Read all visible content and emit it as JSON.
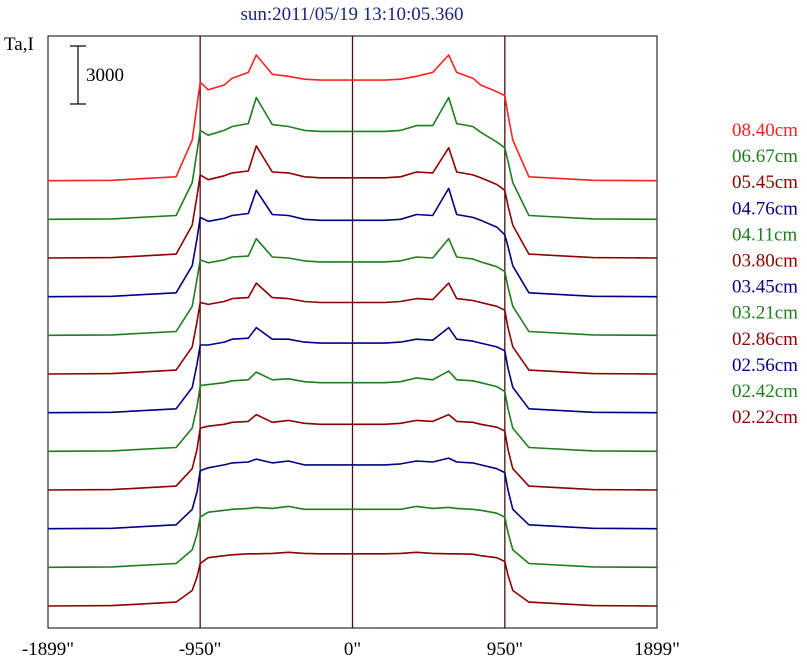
{
  "chart_data": {
    "type": "line",
    "title": "sun:2011/05/19 13:10:05.360",
    "ylabel": "Ta,I",
    "scale_bar_label": "3000",
    "scale_bar_value": 3000,
    "xlim": [
      -1899,
      1899
    ],
    "x_ticks": [
      {
        "value": -1899,
        "label": "-1899\""
      },
      {
        "value": -950,
        "label": "-950\""
      },
      {
        "value": 0,
        "label": "0\""
      },
      {
        "value": 950,
        "label": "950\""
      },
      {
        "value": 1899,
        "label": "1899\""
      }
    ],
    "vertical_markers": [
      -950,
      0,
      950
    ],
    "stack_offset": 2000,
    "x_points": [
      -1899,
      -1500,
      -1100,
      -1000,
      -970,
      -950,
      -900,
      -800,
      -750,
      -650,
      -600,
      -500,
      -400,
      -300,
      -200,
      0,
      200,
      300,
      400,
      500,
      600,
      650,
      750,
      800,
      900,
      950,
      970,
      1000,
      1100,
      1500,
      1899
    ],
    "series": [
      {
        "name": "02.22cm",
        "color": "#8b0000",
        "values": [
          0,
          20,
          200,
          800,
          1500,
          2200,
          2500,
          2600,
          2650,
          2700,
          2700,
          2720,
          2780,
          2720,
          2700,
          2700,
          2700,
          2720,
          2780,
          2720,
          2700,
          2700,
          2680,
          2600,
          2500,
          2300,
          1600,
          800,
          200,
          20,
          0
        ]
      },
      {
        "name": "02.42cm",
        "color": "#1e7d1e",
        "values": [
          0,
          20,
          200,
          900,
          1700,
          2600,
          2850,
          2950,
          3000,
          3050,
          3100,
          3050,
          3150,
          3000,
          3000,
          3000,
          3000,
          3000,
          3150,
          3050,
          3100,
          3050,
          3000,
          2950,
          2800,
          2600,
          1800,
          900,
          200,
          20,
          0
        ]
      },
      {
        "name": "02.56cm",
        "color": "#000080",
        "values": [
          0,
          20,
          200,
          1000,
          1900,
          3000,
          3150,
          3300,
          3400,
          3450,
          3600,
          3400,
          3500,
          3300,
          3300,
          3300,
          3300,
          3350,
          3500,
          3450,
          3650,
          3450,
          3400,
          3300,
          3100,
          2900,
          2000,
          1000,
          200,
          20,
          0
        ]
      },
      {
        "name": "02.86cm",
        "color": "#8b0000",
        "values": [
          0,
          20,
          200,
          1100,
          2100,
          3200,
          3300,
          3400,
          3500,
          3550,
          3900,
          3500,
          3600,
          3450,
          3400,
          3400,
          3400,
          3450,
          3600,
          3550,
          3900,
          3550,
          3500,
          3400,
          3250,
          3050,
          2100,
          1100,
          200,
          20,
          0
        ]
      },
      {
        "name": "03.21cm",
        "color": "#1e7d1e",
        "values": [
          0,
          20,
          200,
          1200,
          2300,
          3400,
          3450,
          3550,
          3650,
          3700,
          4100,
          3700,
          3750,
          3600,
          3550,
          3550,
          3550,
          3600,
          3800,
          3700,
          4150,
          3700,
          3650,
          3550,
          3350,
          3100,
          2200,
          1200,
          200,
          20,
          0
        ]
      },
      {
        "name": "03.45cm",
        "color": "#000080",
        "values": [
          0,
          20,
          200,
          1300,
          2500,
          3500,
          3500,
          3650,
          3800,
          3850,
          4400,
          3800,
          3800,
          3650,
          3600,
          3600,
          3600,
          3650,
          3800,
          3750,
          4400,
          3800,
          3700,
          3600,
          3400,
          3200,
          2300,
          1300,
          200,
          20,
          0
        ]
      },
      {
        "name": "03.80cm",
        "color": "#8b0000",
        "values": [
          0,
          20,
          200,
          1400,
          2700,
          3700,
          3600,
          3750,
          3900,
          3950,
          4700,
          3950,
          3900,
          3750,
          3700,
          3700,
          3700,
          3750,
          3900,
          3850,
          4700,
          3900,
          3800,
          3700,
          3500,
          3300,
          2400,
          1400,
          200,
          20,
          0
        ]
      },
      {
        "name": "04.11cm",
        "color": "#1e7d1e",
        "values": [
          0,
          20,
          200,
          1500,
          2900,
          3900,
          3750,
          3900,
          4050,
          4100,
          5000,
          4050,
          4000,
          3850,
          3800,
          3800,
          3800,
          3850,
          4050,
          4000,
          5000,
          4050,
          3950,
          3800,
          3550,
          3300,
          2500,
          1500,
          200,
          20,
          0
        ]
      },
      {
        "name": "04.76cm",
        "color": "#000080",
        "values": [
          0,
          20,
          200,
          1600,
          3000,
          4100,
          3900,
          4050,
          4200,
          4300,
          5500,
          4250,
          4200,
          4000,
          3950,
          3950,
          3950,
          4000,
          4250,
          4200,
          5600,
          4250,
          4100,
          3950,
          3600,
          3200,
          2600,
          1600,
          200,
          20,
          0
        ]
      },
      {
        "name": "05.45cm",
        "color": "#8b0000",
        "values": [
          0,
          20,
          200,
          1700,
          3200,
          4300,
          4050,
          4250,
          4400,
          4500,
          5800,
          4450,
          4400,
          4200,
          4150,
          4150,
          4150,
          4200,
          4450,
          4400,
          5700,
          4450,
          4300,
          4150,
          3800,
          3500,
          2700,
          1700,
          200,
          20,
          0
        ]
      },
      {
        "name": "06.67cm",
        "color": "#1e7d1e",
        "values": [
          0,
          20,
          200,
          1900,
          3500,
          4600,
          4350,
          4600,
          4800,
          4950,
          6300,
          4900,
          4800,
          4600,
          4550,
          4550,
          4550,
          4600,
          4850,
          4850,
          6300,
          4950,
          4800,
          4500,
          4000,
          3700,
          3000,
          1900,
          200,
          20,
          0
        ]
      },
      {
        "name": "08.40cm",
        "color": "#ff2020",
        "values": [
          0,
          20,
          200,
          2100,
          3900,
          5100,
          4700,
          4950,
          5300,
          5600,
          6500,
          5500,
          5400,
          5250,
          5200,
          5200,
          5200,
          5250,
          5400,
          5600,
          6500,
          5600,
          5300,
          4950,
          4600,
          4400,
          3400,
          2100,
          200,
          20,
          0
        ]
      }
    ]
  }
}
